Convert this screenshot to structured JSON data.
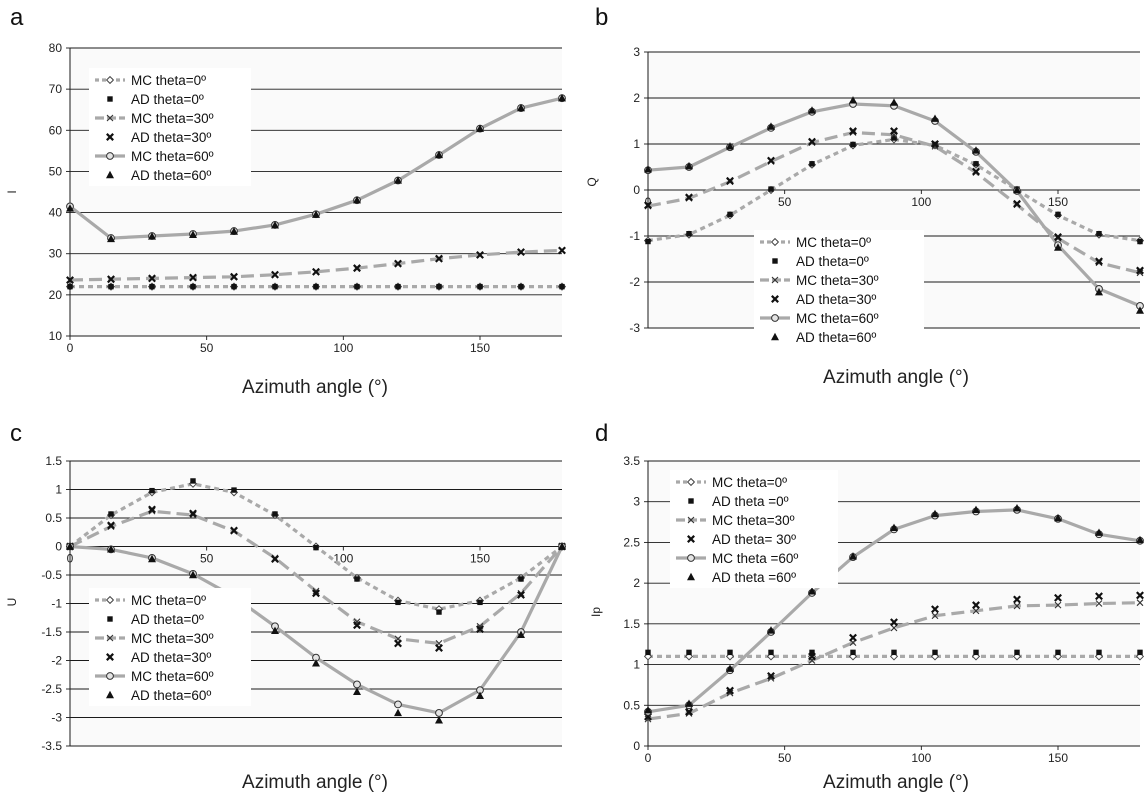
{
  "chart_data": [
    {
      "panel_label": "a",
      "type": "line",
      "xlabel": "Azimuth angle (°)",
      "ylabel": "I",
      "xlim": [
        0,
        180
      ],
      "ylim": [
        10,
        80
      ],
      "xticks": [
        0,
        50,
        100,
        150
      ],
      "yticks": [
        10,
        20,
        30,
        40,
        50,
        60,
        70,
        80
      ],
      "xticks_on_zero_line": false,
      "grid": "horizontal",
      "legend_position": "top-left",
      "x": [
        0,
        15,
        30,
        45,
        60,
        75,
        90,
        105,
        120,
        135,
        150,
        165,
        180
      ],
      "series": [
        {
          "name": "MC  theta=0º",
          "marker": "diamond",
          "line": "short-dash",
          "values": [
            22,
            22,
            22,
            22,
            22,
            22,
            22,
            22,
            22,
            22,
            22,
            22,
            22
          ]
        },
        {
          "name": "AD theta=0º",
          "marker": "square",
          "line": "none",
          "values": [
            22,
            22,
            22,
            22,
            22,
            22,
            22,
            22,
            22,
            22,
            22,
            22,
            22
          ]
        },
        {
          "name": "MC theta=30º",
          "marker": "x",
          "line": "long-dash",
          "values": [
            23.6,
            23.8,
            24,
            24.2,
            24.4,
            24.9,
            25.6,
            26.5,
            27.6,
            28.8,
            29.7,
            30.4,
            30.8
          ]
        },
        {
          "name": "AD theta=30º",
          "marker": "x-bold",
          "line": "none",
          "values": [
            23.6,
            23.8,
            24,
            24.2,
            24.4,
            24.9,
            25.6,
            26.5,
            27.6,
            28.8,
            29.7,
            30.4,
            30.8
          ]
        },
        {
          "name": "MC theta=60º",
          "marker": "circle",
          "line": "solid",
          "values": [
            41.5,
            33.8,
            34.3,
            34.8,
            35.5,
            37,
            39.6,
            43,
            47.8,
            54,
            60.4,
            65.4,
            67.8
          ]
        },
        {
          "name": "AD theta=60º",
          "marker": "triangle",
          "line": "none",
          "values": [
            41,
            33.6,
            34.2,
            34.6,
            35.4,
            36.9,
            39.5,
            43,
            47.8,
            54,
            60.4,
            65.4,
            67.8
          ]
        }
      ]
    },
    {
      "panel_label": "b",
      "type": "line",
      "xlabel": "Azimuth angle (°)",
      "ylabel": "Q",
      "xlim": [
        0,
        180
      ],
      "ylim": [
        -3,
        3
      ],
      "xticks": [
        0,
        50,
        100,
        150
      ],
      "yticks": [
        -3,
        -2,
        -1,
        0,
        1,
        2,
        3
      ],
      "xticks_on_zero_line": true,
      "grid": "horizontal",
      "legend_position": "bottom-center",
      "x": [
        0,
        15,
        30,
        45,
        60,
        75,
        90,
        105,
        120,
        135,
        150,
        165,
        180
      ],
      "series": [
        {
          "name": "MC theta=0º",
          "marker": "diamond",
          "line": "short-dash",
          "values": [
            -1.1,
            -0.97,
            -0.55,
            0,
            0.55,
            0.97,
            1.1,
            0.97,
            0.55,
            0,
            -0.55,
            -0.97,
            -1.1
          ]
        },
        {
          "name": "AD theta=0º",
          "marker": "square",
          "line": "none",
          "values": [
            -1.12,
            -0.95,
            -0.53,
            0.02,
            0.57,
            0.99,
            1.13,
            0.98,
            0.57,
            0.02,
            -0.53,
            -0.95,
            -1.12
          ]
        },
        {
          "name": "MC theta=30º",
          "marker": "x",
          "line": "long-dash",
          "values": [
            -0.35,
            -0.18,
            0.18,
            0.62,
            1.03,
            1.25,
            1.2,
            0.95,
            0.38,
            -0.32,
            -1.05,
            -1.58,
            -1.8
          ]
        },
        {
          "name": "AD theta=30º",
          "marker": "x-bold",
          "line": "none",
          "values": [
            -0.33,
            -0.16,
            0.2,
            0.64,
            1.05,
            1.28,
            1.28,
            1.0,
            0.4,
            -0.3,
            -1.02,
            -1.55,
            -1.75
          ]
        },
        {
          "name": "MC theta=60º",
          "marker": "circle",
          "line": "solid",
          "values": [
            0.43,
            0.5,
            0.93,
            1.35,
            1.7,
            1.87,
            1.83,
            1.5,
            0.83,
            -0.02,
            -1.2,
            -2.15,
            -2.52
          ]
        },
        {
          "name": "AD theta=60º",
          "marker": "triangle",
          "line": "none",
          "values": [
            0.45,
            0.52,
            0.95,
            1.38,
            1.73,
            1.95,
            1.9,
            1.55,
            0.86,
            0.0,
            -1.25,
            -2.22,
            -2.62
          ]
        }
      ]
    },
    {
      "panel_label": "c",
      "type": "line",
      "xlabel": "Azimuth angle (°)",
      "ylabel": "U",
      "xlim": [
        0,
        180
      ],
      "ylim": [
        -3.5,
        1.5
      ],
      "xticks": [
        0,
        50,
        100,
        150
      ],
      "yticks": [
        -3.5,
        -3,
        -2.5,
        -2,
        -1.5,
        -1,
        -0.5,
        0,
        0.5,
        1,
        1.5
      ],
      "xticks_on_zero_line": true,
      "grid": "horizontal",
      "legend_position": "bottom-left",
      "x": [
        0,
        15,
        30,
        45,
        60,
        75,
        90,
        105,
        120,
        135,
        150,
        165,
        180
      ],
      "series": [
        {
          "name": "MC theta=0º",
          "marker": "diamond",
          "line": "short-dash",
          "values": [
            0,
            0.55,
            0.95,
            1.1,
            0.95,
            0.55,
            0,
            -0.55,
            -0.95,
            -1.1,
            -0.95,
            -0.55,
            0
          ]
        },
        {
          "name": "AD theta=0º",
          "marker": "square",
          "line": "none",
          "values": [
            0,
            0.57,
            0.98,
            1.15,
            0.99,
            0.57,
            -0.02,
            -0.57,
            -0.98,
            -1.15,
            -0.98,
            -0.57,
            0
          ]
        },
        {
          "name": "MC theta=30º",
          "marker": "x",
          "line": "long-dash",
          "values": [
            0,
            0.35,
            0.62,
            0.55,
            0.27,
            -0.2,
            -0.78,
            -1.32,
            -1.62,
            -1.7,
            -1.4,
            -0.82,
            0
          ]
        },
        {
          "name": "AD theta=30º",
          "marker": "x-bold",
          "line": "none",
          "values": [
            0,
            0.37,
            0.65,
            0.58,
            0.28,
            -0.22,
            -0.82,
            -1.38,
            -1.7,
            -1.78,
            -1.45,
            -0.85,
            0
          ]
        },
        {
          "name": "MC theta=60º",
          "marker": "circle",
          "line": "solid",
          "values": [
            0,
            -0.05,
            -0.2,
            -0.48,
            -0.88,
            -1.4,
            -1.95,
            -2.42,
            -2.77,
            -2.92,
            -2.52,
            -1.5,
            0
          ]
        },
        {
          "name": "AD theta=60º",
          "marker": "triangle",
          "line": "none",
          "values": [
            0,
            -0.05,
            -0.22,
            -0.5,
            -0.95,
            -1.48,
            -2.05,
            -2.55,
            -2.92,
            -3.05,
            -2.62,
            -1.55,
            0
          ]
        }
      ]
    },
    {
      "panel_label": "d",
      "type": "line",
      "xlabel": "Azimuth angle (°)",
      "ylabel": "Ip",
      "xlim": [
        0,
        180
      ],
      "ylim": [
        0,
        3.5
      ],
      "xticks": [
        0,
        50,
        100,
        150
      ],
      "yticks": [
        0,
        0.5,
        1,
        1.5,
        2,
        2.5,
        3,
        3.5
      ],
      "xticks_on_zero_line": false,
      "grid": "horizontal",
      "legend_position": "top-left",
      "x": [
        0,
        15,
        30,
        45,
        60,
        75,
        90,
        105,
        120,
        135,
        150,
        165,
        180
      ],
      "series": [
        {
          "name": "MC theta=0º",
          "marker": "diamond",
          "line": "short-dash",
          "values": [
            1.1,
            1.1,
            1.1,
            1.1,
            1.1,
            1.1,
            1.1,
            1.1,
            1.1,
            1.1,
            1.1,
            1.1,
            1.1
          ]
        },
        {
          "name": "AD theta =0º",
          "marker": "square",
          "line": "none",
          "values": [
            1.15,
            1.15,
            1.15,
            1.15,
            1.15,
            1.15,
            1.15,
            1.15,
            1.15,
            1.15,
            1.15,
            1.15,
            1.15
          ]
        },
        {
          "name": "MC theta=30º",
          "marker": "x",
          "line": "long-dash",
          "values": [
            0.33,
            0.4,
            0.65,
            0.83,
            1.05,
            1.27,
            1.45,
            1.6,
            1.66,
            1.72,
            1.73,
            1.75,
            1.76
          ]
        },
        {
          "name": "AD theta= 30º",
          "marker": "x-bold",
          "line": "none",
          "values": [
            0.36,
            0.42,
            0.68,
            0.86,
            1.1,
            1.33,
            1.52,
            1.68,
            1.73,
            1.8,
            1.82,
            1.84,
            1.85
          ]
        },
        {
          "name": "MC theta =60º",
          "marker": "circle",
          "line": "solid",
          "values": [
            0.42,
            0.5,
            0.93,
            1.4,
            1.88,
            2.32,
            2.66,
            2.83,
            2.88,
            2.9,
            2.79,
            2.6,
            2.52
          ]
        },
        {
          "name": "AD theta =60º",
          "marker": "triangle",
          "line": "none",
          "values": [
            0.44,
            0.52,
            0.95,
            1.42,
            1.9,
            2.33,
            2.68,
            2.85,
            2.9,
            2.92,
            2.8,
            2.62,
            2.53
          ]
        }
      ]
    }
  ]
}
